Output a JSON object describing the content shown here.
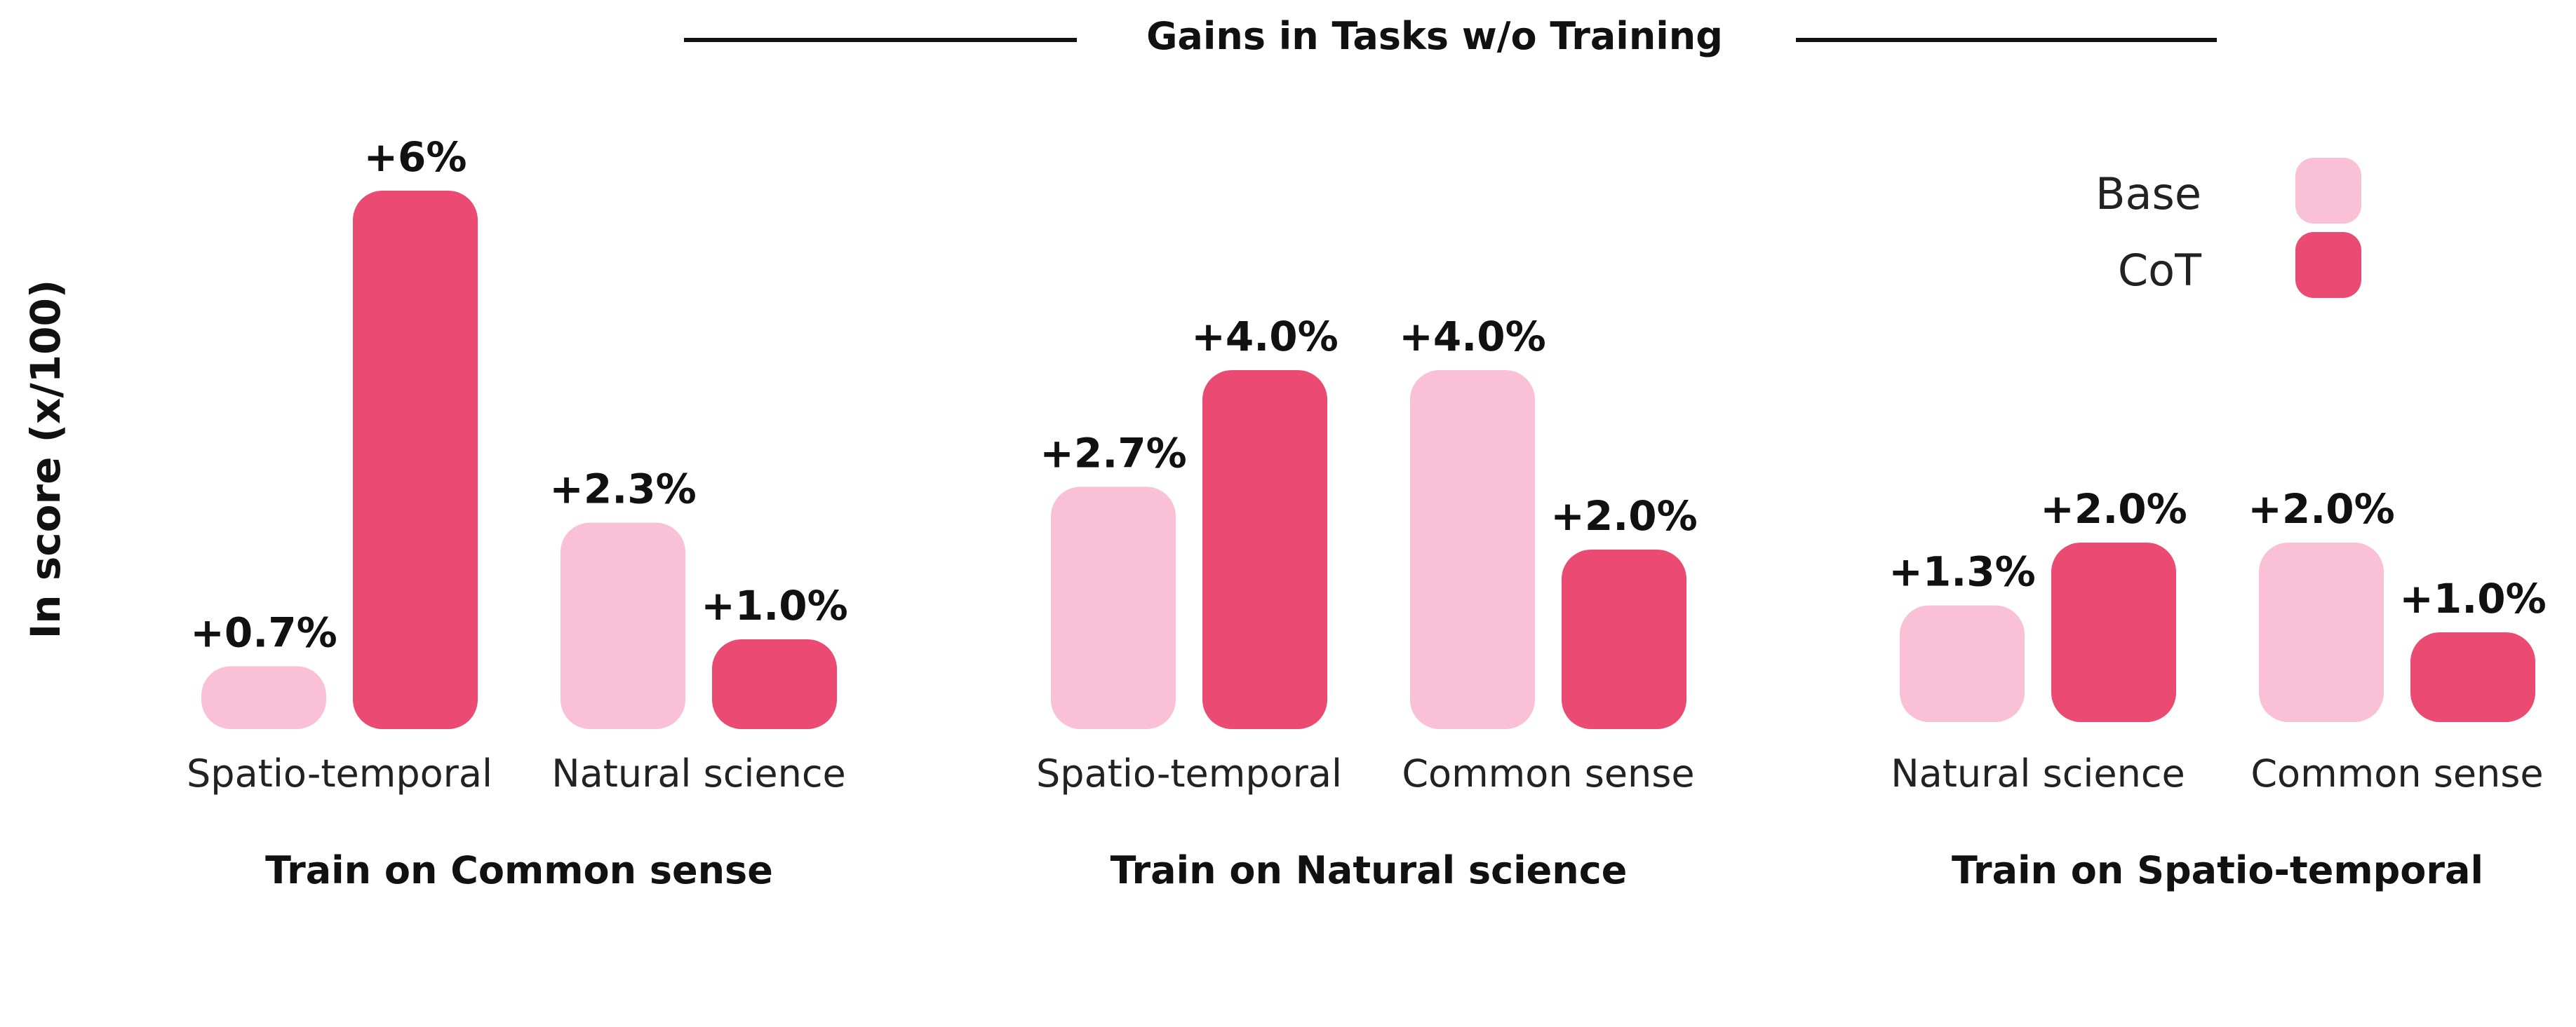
{
  "chart_data": {
    "type": "bar",
    "title": "Gains in Tasks w/o Training",
    "ylabel": "In score (x/100)",
    "ylim": [
      0,
      6
    ],
    "grid": false,
    "legend_position": "top-right",
    "legend": [
      {
        "name": "Base",
        "color": "#f9c0d6"
      },
      {
        "name": "CoT",
        "color": "#eb4a72"
      }
    ],
    "colors": {
      "base": "#f9c0d6",
      "cot": "#eb4a72",
      "text": "#111111"
    },
    "groups": [
      {
        "label": "Train on Common sense",
        "categories": [
          {
            "label": "Spatio-temporal",
            "base": 0.7,
            "base_label": "+0.7%",
            "cot": 6,
            "cot_label": "+6%"
          },
          {
            "label": "Natural science",
            "base": 2.3,
            "base_label": "+2.3%",
            "cot": 1.0,
            "cot_label": "+1.0%"
          }
        ]
      },
      {
        "label": "Train on Natural science",
        "categories": [
          {
            "label": "Spatio-temporal",
            "base": 2.7,
            "base_label": "+2.7%",
            "cot": 4.0,
            "cot_label": "+4.0%"
          },
          {
            "label": "Common sense",
            "base": 4.0,
            "base_label": "+4.0%",
            "cot": 2.0,
            "cot_label": "+2.0%"
          }
        ]
      },
      {
        "label": "Train on Spatio-temporal",
        "categories": [
          {
            "label": "Natural science",
            "base": 1.3,
            "base_label": "+1.3%",
            "cot": 2.0,
            "cot_label": "+2.0%"
          },
          {
            "label": "Common sense",
            "base": 2.0,
            "base_label": "+2.0%",
            "cot": 1.0,
            "cot_label": "+1.0%"
          }
        ]
      }
    ]
  }
}
